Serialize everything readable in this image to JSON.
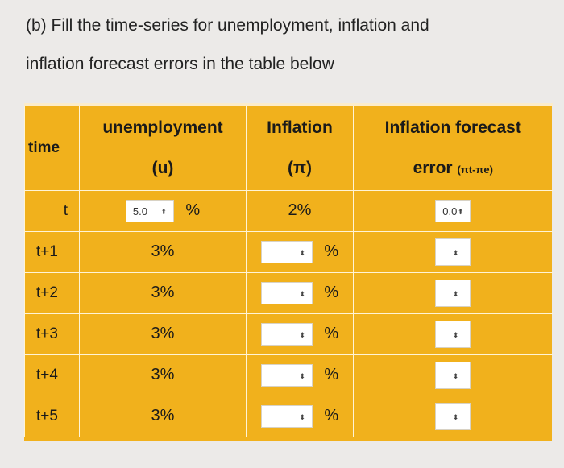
{
  "instructions": {
    "line1": "(b) Fill the time-series for unemployment, inflation and",
    "line2": "inflation forecast errors in the table below"
  },
  "table": {
    "headers": {
      "time": "time",
      "unemployment_l1": "unemployment",
      "unemployment_l2": "(u)",
      "inflation_l1": "Inflation",
      "inflation_l2": "(π)",
      "error_l1": "Inflation forecast",
      "error_l2": "error",
      "error_sub": "(πt-πe)"
    },
    "rows": [
      {
        "time": "t",
        "unemployment": "5.0",
        "unit": "%",
        "inflation": "2%",
        "error": "0.0"
      },
      {
        "time": "t+1",
        "unemployment": "3%",
        "inflation": "",
        "unit": "%",
        "error": ""
      },
      {
        "time": "t+2",
        "unemployment": "3%",
        "inflation": "",
        "unit": "%",
        "error": ""
      },
      {
        "time": "t+3",
        "unemployment": "3%",
        "inflation": "",
        "unit": "%",
        "error": ""
      },
      {
        "time": "t+4",
        "unemployment": "3%",
        "inflation": "",
        "unit": "%",
        "error": ""
      },
      {
        "time": "t+5",
        "unemployment": "3%",
        "inflation": "",
        "unit": "%",
        "error": ""
      }
    ],
    "spinner_glyph": "⬍",
    "colors": {
      "table_bg": "#f1b11c",
      "page_bg": "#eceae8"
    }
  }
}
